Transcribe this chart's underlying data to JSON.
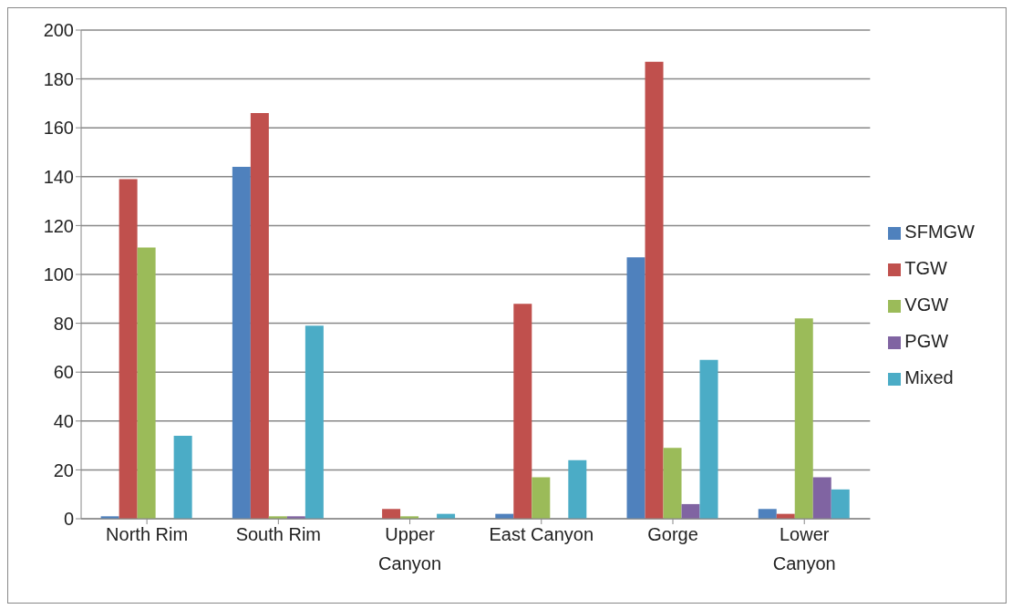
{
  "chart_data": {
    "type": "bar",
    "categories": [
      "North Rim",
      "South Rim",
      "Upper Canyon",
      "East Canyon",
      "Gorge",
      "Lower Canyon"
    ],
    "series": [
      {
        "name": "SFMGW",
        "color": "#4f81bd",
        "values": [
          1,
          144,
          0,
          2,
          107,
          4
        ]
      },
      {
        "name": "TGW",
        "color": "#c0504d",
        "values": [
          139,
          166,
          4,
          88,
          187,
          2
        ]
      },
      {
        "name": "VGW",
        "color": "#9bbb59",
        "values": [
          111,
          1,
          1,
          17,
          29,
          82
        ]
      },
      {
        "name": "PGW",
        "color": "#8064a2",
        "values": [
          0,
          1,
          0,
          0,
          6,
          17
        ]
      },
      {
        "name": "Mixed",
        "color": "#4bacc6",
        "values": [
          34,
          79,
          2,
          24,
          65,
          12
        ]
      }
    ],
    "ylim": [
      0,
      200
    ],
    "yticks": [
      0,
      20,
      40,
      60,
      80,
      100,
      120,
      140,
      160,
      180,
      200
    ],
    "grid": "y",
    "legend": "right"
  }
}
